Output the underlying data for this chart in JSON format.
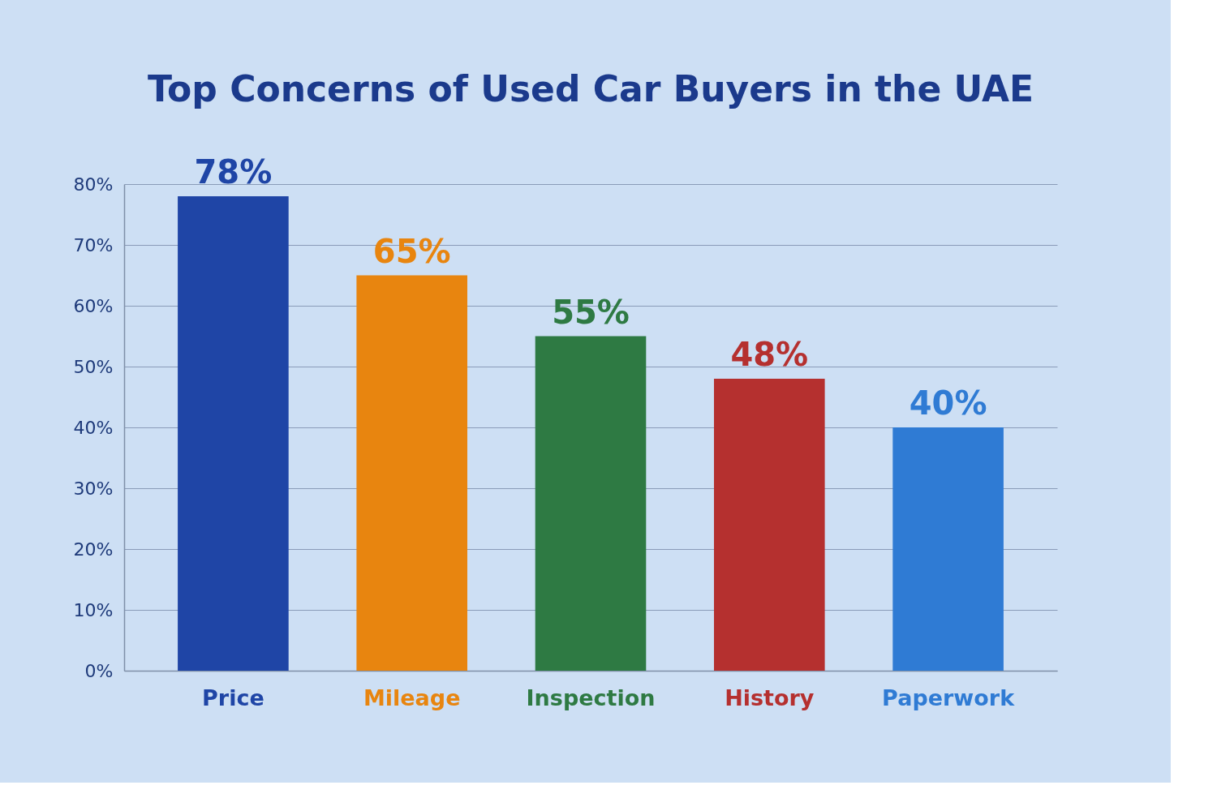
{
  "chart_data": {
    "type": "bar",
    "title": "Top Concerns of Used Car Buyers in the UAE",
    "categories": [
      "Price",
      "Mileage",
      "Inspection",
      "History",
      "Paperwork"
    ],
    "values": [
      78,
      65,
      55,
      48,
      40
    ],
    "colors": [
      "#1f45a6",
      "#e8850f",
      "#2e7a43",
      "#b5302f",
      "#2f7bd4"
    ],
    "value_labels": [
      "78%",
      "65%",
      "55%",
      "48%",
      "40%"
    ],
    "ylim": [
      0,
      80
    ],
    "yticks": [
      {
        "value": 0,
        "label": "0%"
      },
      {
        "value": 10,
        "label": "10%"
      },
      {
        "value": 20,
        "label": "20%"
      },
      {
        "value": 30,
        "label": "30%"
      },
      {
        "value": 40,
        "label": "40%"
      },
      {
        "value": 50,
        "label": "50%"
      },
      {
        "value": 60,
        "label": "60%"
      },
      {
        "value": 70,
        "label": "70%"
      },
      {
        "value": 80,
        "label": "80%"
      }
    ],
    "grid": "y"
  }
}
